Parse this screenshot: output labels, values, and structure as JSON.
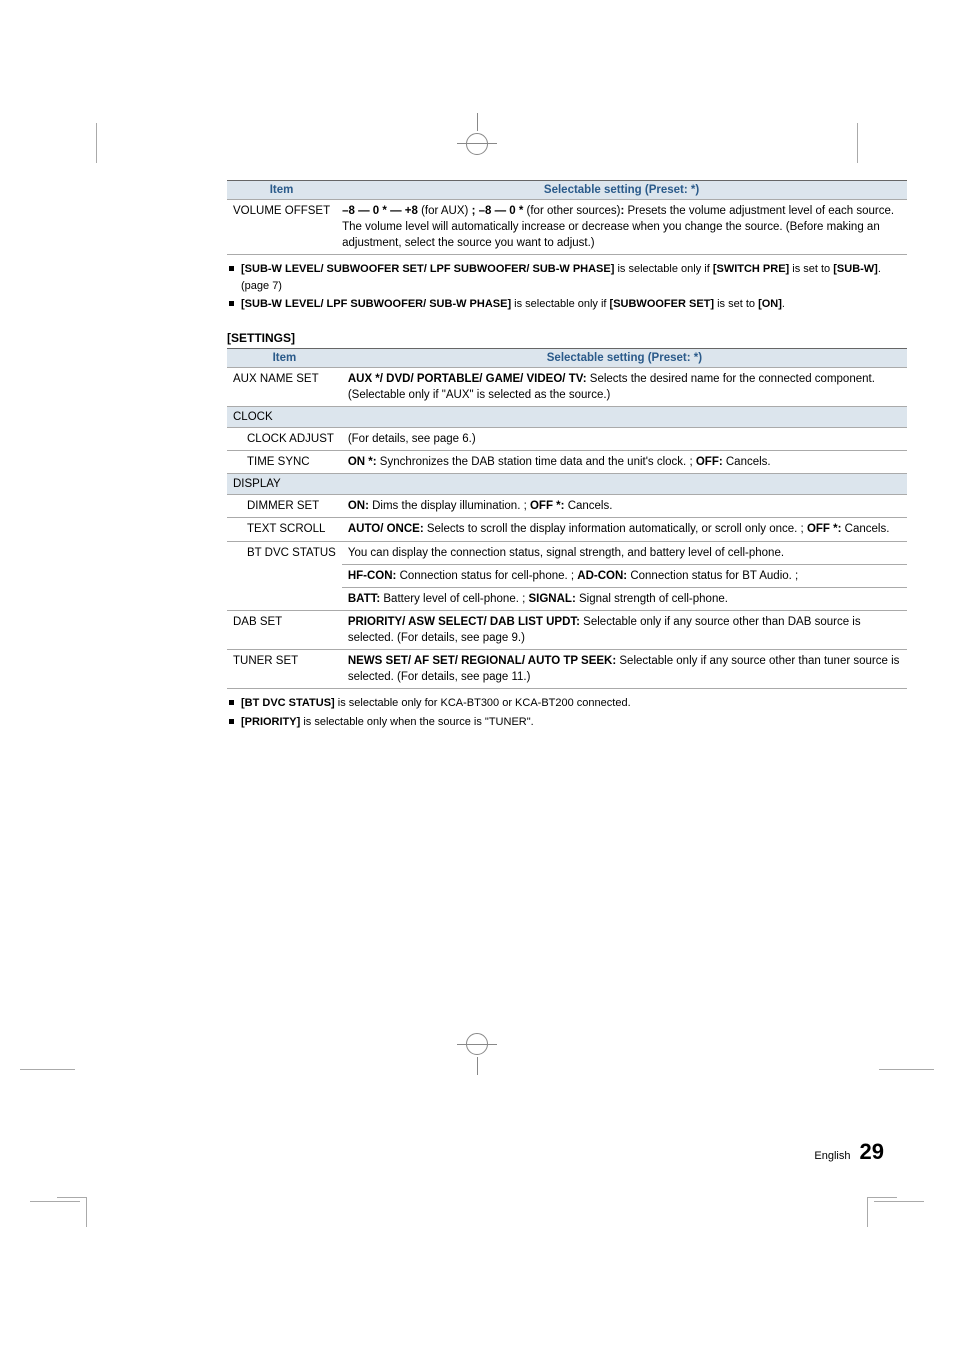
{
  "colors": {
    "header_text": "#2a5a8a",
    "header_bg": "#dce5ed",
    "border": "#aaaaaa",
    "border_top": "#666666",
    "text": "#000000",
    "background": "#ffffff"
  },
  "table1": {
    "header_item": "Item",
    "header_setting": "Selectable setting (Preset: *)",
    "rows": [
      {
        "item": "VOLUME OFFSET",
        "desc_parts": [
          {
            "t": "–8 — 0 * — +8 ",
            "b": true
          },
          {
            "t": "(for AUX) ",
            "b": false
          },
          {
            "t": "; –8 — 0 * ",
            "b": true
          },
          {
            "t": "(for other sources)",
            "b": false
          },
          {
            "t": ": ",
            "b": true
          },
          {
            "t": "Presets the volume adjustment level of each source. The volume level will automatically increase or decrease when you change the source. (Before making an adjustment, select the source you want to adjust.)",
            "b": false
          }
        ]
      }
    ]
  },
  "notes1": [
    {
      "parts": [
        {
          "t": "[SUB-W LEVEL/ SUBWOOFER SET/ LPF SUBWOOFER/ SUB-W PHASE]",
          "b": true
        },
        {
          "t": " is selectable only if ",
          "b": false
        },
        {
          "t": "[SWITCH PRE]",
          "b": true
        },
        {
          "t": " is set to ",
          "b": false
        },
        {
          "t": "[SUB-W]",
          "b": true
        },
        {
          "t": ". (page 7)",
          "b": false
        }
      ]
    },
    {
      "parts": [
        {
          "t": "[SUB-W LEVEL/ LPF SUBWOOFER/ SUB-W PHASE]",
          "b": true
        },
        {
          "t": " is selectable only if ",
          "b": false
        },
        {
          "t": "[SUBWOOFER SET]",
          "b": true
        },
        {
          "t": " is set to ",
          "b": false
        },
        {
          "t": "[ON]",
          "b": true
        },
        {
          "t": ".",
          "b": false
        }
      ]
    }
  ],
  "settings_heading": "[SETTINGS]",
  "table2": {
    "header_item": "Item",
    "header_setting": "Selectable setting (Preset: *)",
    "rows": [
      {
        "type": "row",
        "item": "AUX NAME SET",
        "indent": false,
        "desc_parts": [
          {
            "t": "AUX */ DVD/ PORTABLE/ GAME/ VIDEO/ TV: ",
            "b": true
          },
          {
            "t": "Selects the desired name for the connected component. (Selectable only if \"AUX\" is selected as the source.)",
            "b": false
          }
        ]
      },
      {
        "type": "section",
        "item": "CLOCK"
      },
      {
        "type": "row",
        "item": "CLOCK ADJUST",
        "indent": true,
        "desc_parts": [
          {
            "t": "(For details, see page 6.)",
            "b": false
          }
        ]
      },
      {
        "type": "row",
        "item": "TIME SYNC",
        "indent": true,
        "desc_parts": [
          {
            "t": "ON *: ",
            "b": true
          },
          {
            "t": "Synchronizes the DAB station time data and the unit's clock. ; ",
            "b": false
          },
          {
            "t": "OFF: ",
            "b": true
          },
          {
            "t": "Cancels.",
            "b": false
          }
        ]
      },
      {
        "type": "section",
        "item": "DISPLAY"
      },
      {
        "type": "row",
        "item": "DIMMER SET",
        "indent": true,
        "desc_parts": [
          {
            "t": "ON: ",
            "b": true
          },
          {
            "t": "Dims the display illumination. ; ",
            "b": false
          },
          {
            "t": "OFF *: ",
            "b": true
          },
          {
            "t": "Cancels.",
            "b": false
          }
        ]
      },
      {
        "type": "row",
        "item": "TEXT SCROLL",
        "indent": true,
        "desc_parts": [
          {
            "t": "AUTO/ ONCE: ",
            "b": true
          },
          {
            "t": "Selects to scroll the display information automatically, or scroll only once. ; ",
            "b": false
          },
          {
            "t": "OFF *: ",
            "b": true
          },
          {
            "t": "Cancels.",
            "b": false
          }
        ]
      },
      {
        "type": "row",
        "item": "BT DVC STATUS",
        "indent": true,
        "desc_parts": [
          {
            "t": "You can display the connection status, signal strength, and battery level of cell-phone.",
            "b": false
          }
        ],
        "cont": [
          [
            {
              "t": "HF-CON: ",
              "b": true
            },
            {
              "t": "Connection status for cell-phone. ; ",
              "b": false
            },
            {
              "t": "AD-CON: ",
              "b": true
            },
            {
              "t": "Connection status for BT Audio. ;",
              "b": false
            }
          ],
          [
            {
              "t": "BATT: ",
              "b": true
            },
            {
              "t": "Battery level of cell-phone. ; ",
              "b": false
            },
            {
              "t": "SIGNAL: ",
              "b": true
            },
            {
              "t": "Signal strength of cell-phone.",
              "b": false
            }
          ]
        ]
      },
      {
        "type": "row",
        "item": "DAB SET",
        "indent": false,
        "desc_parts": [
          {
            "t": "PRIORITY/ ASW SELECT/ DAB LIST UPDT: ",
            "b": true
          },
          {
            "t": "Selectable only if any source other than DAB source is selected. (For details, see page 9.)",
            "b": false
          }
        ]
      },
      {
        "type": "row",
        "item": "TUNER SET",
        "indent": false,
        "desc_parts": [
          {
            "t": "NEWS SET/ AF SET/ REGIONAL/ AUTO TP SEEK: ",
            "b": true
          },
          {
            "t": "Selectable only if any source other than tuner source is selected. (For details, see page 11.)",
            "b": false
          }
        ]
      }
    ]
  },
  "notes2": [
    {
      "parts": [
        {
          "t": "[BT DVC STATUS]",
          "b": true
        },
        {
          "t": " is selectable only for KCA-BT300 or KCA-BT200 connected.",
          "b": false
        }
      ]
    },
    {
      "parts": [
        {
          "t": "[PRIORITY]",
          "b": true
        },
        {
          "t": " is selectable only when the source is \"TUNER\".",
          "b": false
        }
      ]
    }
  ],
  "footer": {
    "lang": "English",
    "page": "29"
  }
}
